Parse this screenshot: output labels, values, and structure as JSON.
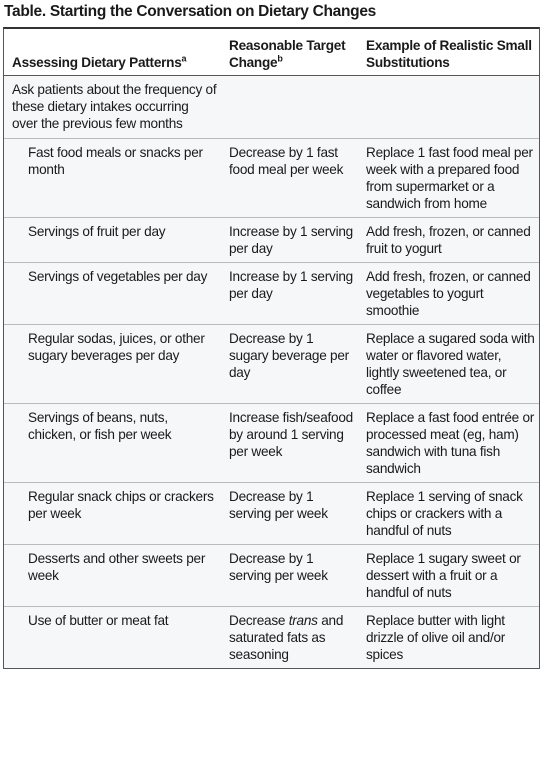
{
  "title": "Table. Starting the Conversation on Dietary Changes",
  "table": {
    "columns": [
      {
        "text": "Assessing Dietary Patterns",
        "sup": "a"
      },
      {
        "text": "Reasonable Target Change",
        "sup": "b"
      },
      {
        "text": "Example of Realistic Small Substitutions"
      }
    ],
    "intro": "Ask patients about the frequency of these dietary intakes occurring over the previous few months",
    "rows": [
      [
        "Fast food meals or snacks per month",
        "Decrease by 1 fast food meal per week",
        "Replace 1 fast food meal per week with a prepared food from supermarket or a sandwich from home"
      ],
      [
        "Servings of fruit per day",
        "Increase by 1 serving per day",
        "Add fresh, frozen, or canned fruit to yogurt"
      ],
      [
        "Servings of vegetables per day",
        "Increase by 1 serving per day",
        "Add fresh, frozen, or canned vegetables to yogurt smoothie"
      ],
      [
        "Regular sodas, juices, or other sugary beverages per day",
        "Decrease by 1 sugary beverage per day",
        "Replace a sugared soda with water or flavored water, lightly sweetened tea, or coffee"
      ],
      [
        "Servings of beans, nuts, chicken, or fish per week",
        "Increase fish/seafood by around 1 serving per week",
        "Replace a fast food entrée or processed meat (eg, ham) sandwich with tuna fish sandwich"
      ],
      [
        "Regular snack chips or crackers per week",
        "Decrease by 1 serving per week",
        "Replace 1 serving of snack chips or crackers with a handful of nuts"
      ],
      [
        "Desserts and other sweets per week",
        "Decrease by 1 serving per week",
        "Replace 1 sugary sweet or dessert with a fruit or a handful of nuts"
      ],
      [
        "Use of butter or meat fat",
        [
          "Decrease ",
          "trans",
          " and saturated fats as seasoning"
        ],
        "Replace butter with light drizzle of olive oil and/or spices"
      ]
    ]
  }
}
